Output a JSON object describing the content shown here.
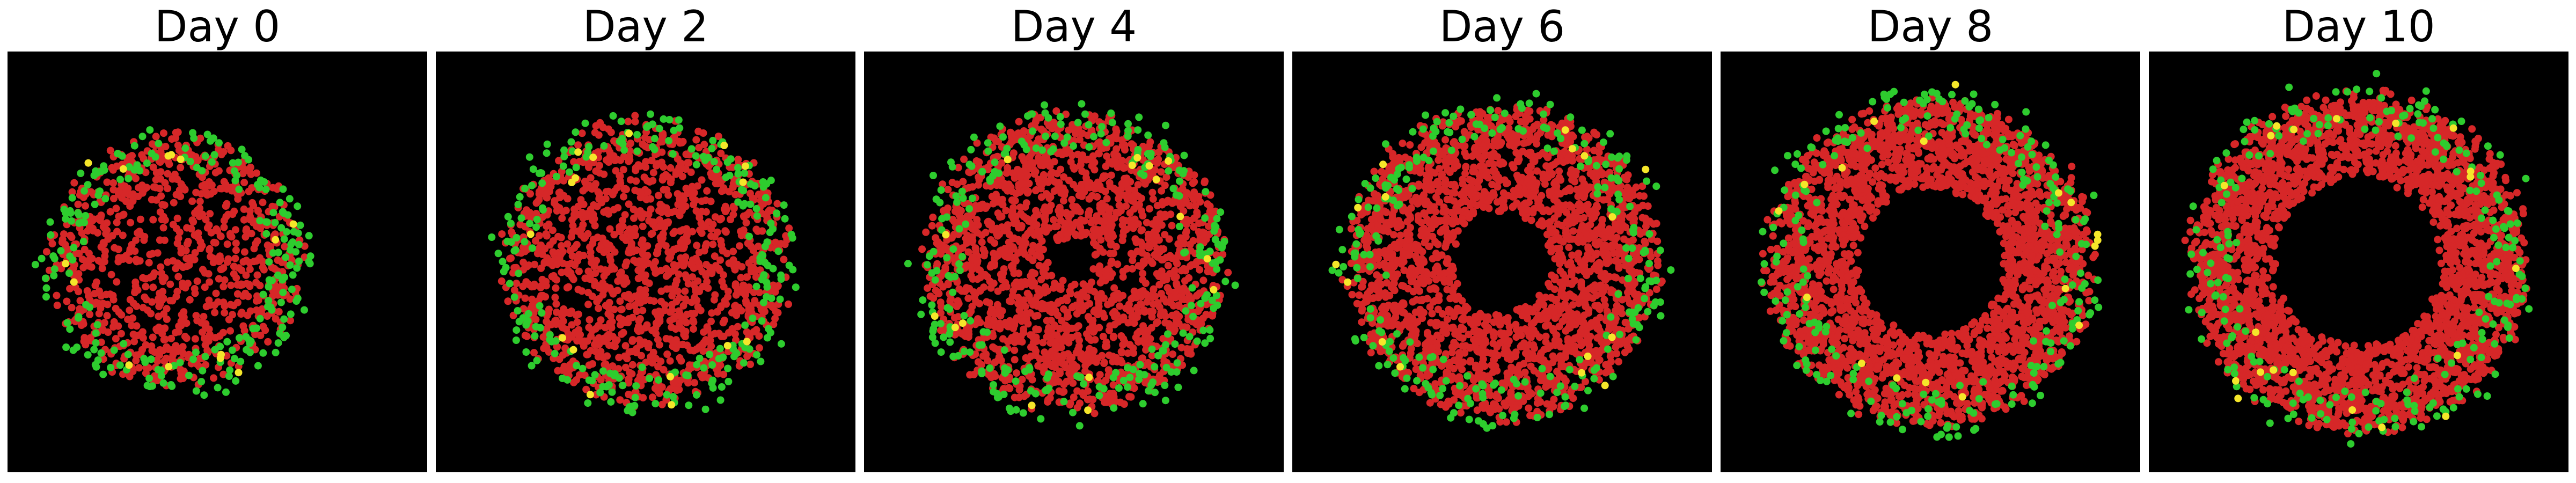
{
  "figure": {
    "background": "#000000",
    "panels": [
      {
        "title": "Day 0",
        "seed": 11,
        "counts": {
          "red": 900,
          "green": 220,
          "yellow": 14
        }
      },
      {
        "title": "Day 2",
        "seed": 23,
        "counts": {
          "red": 1400,
          "green": 240,
          "yellow": 16
        }
      },
      {
        "title": "Day 4",
        "seed": 37,
        "counts": {
          "red": 1900,
          "green": 260,
          "yellow": 16
        }
      },
      {
        "title": "Day 6",
        "seed": 41,
        "counts": {
          "red": 2300,
          "green": 250,
          "yellow": 16
        }
      },
      {
        "title": "Day 8",
        "seed": 53,
        "counts": {
          "red": 2600,
          "green": 240,
          "yellow": 18
        }
      },
      {
        "title": "Day 10",
        "seed": 67,
        "counts": {
          "red": 2800,
          "green": 230,
          "yellow": 20
        }
      }
    ],
    "colors": {
      "red": "#d62728",
      "green": "#2ecc2e",
      "yellow": "#f5e62a"
    }
  }
}
